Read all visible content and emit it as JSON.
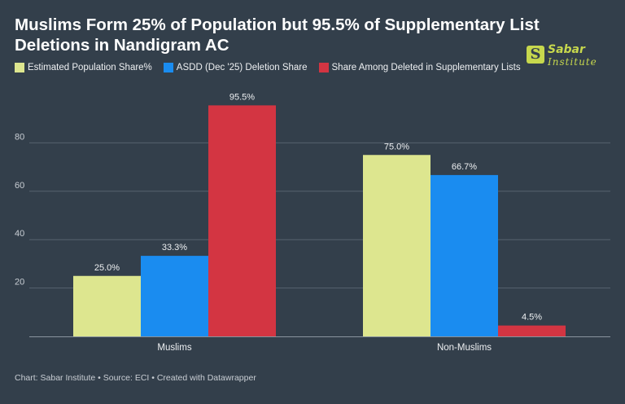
{
  "title": "Muslims Form 25% of Population but 95.5% of Supplementary List Deletions in Nandigram AC",
  "logo": {
    "mark": "S",
    "line1": "Sabar",
    "line2": "Institute"
  },
  "footer": "Chart: Sabar Institute • Source: ECI • Created with Datawrapper",
  "colors": {
    "background": "#333f4b",
    "series": [
      "#dde68f",
      "#1a8cf0",
      "#d33542"
    ]
  },
  "chart_data": {
    "type": "bar",
    "title": "Muslims Form 25% of Population but 95.5% of Supplementary List Deletions in Nandigram AC",
    "categories": [
      "Muslims",
      "Non-Muslims"
    ],
    "series": [
      {
        "name": "Estimated Population Share%",
        "values": [
          25.0,
          75.0
        ],
        "labels": [
          "25.0%",
          "75.0%"
        ]
      },
      {
        "name": "ASDD (Dec '25) Deletion Share",
        "values": [
          33.3,
          66.7
        ],
        "labels": [
          "33.3%",
          "66.7%"
        ]
      },
      {
        "name": "Share Among Deleted in Supplementary Lists",
        "values": [
          95.5,
          4.5
        ],
        "labels": [
          "95.5%",
          "4.5%"
        ]
      }
    ],
    "ylim": [
      0,
      100
    ],
    "yticks": [
      20,
      40,
      60,
      80
    ],
    "grid": true,
    "legend_position": "top-left",
    "xlabel": "",
    "ylabel": ""
  }
}
